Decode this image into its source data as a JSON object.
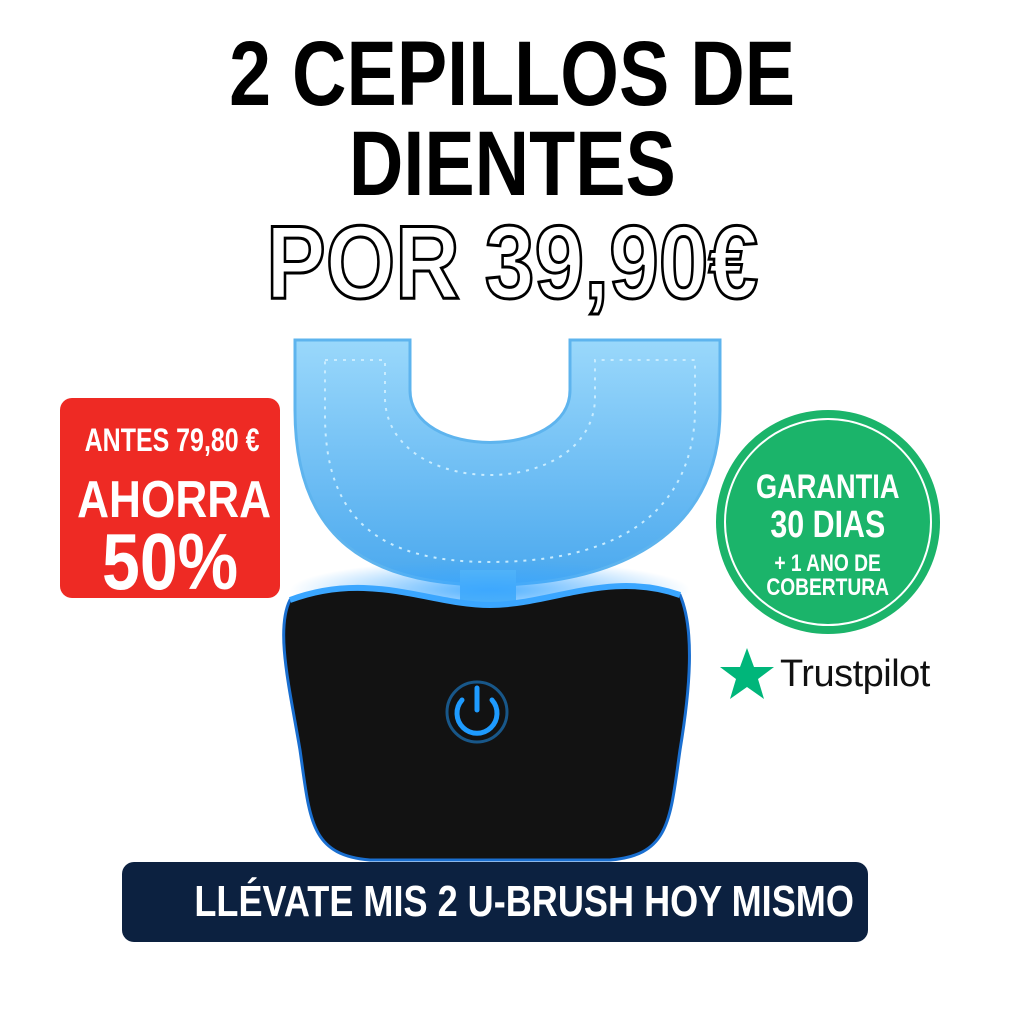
{
  "headline": {
    "line1": "2 CEPILLOS DE",
    "line2": "DIENTES",
    "price_line": "POR 39,90€"
  },
  "discount_badge": {
    "before_price": "ANTES 79,80 €",
    "save_label": "AHORRA",
    "percent": "50%",
    "color": "#ee2a24"
  },
  "guarantee_badge": {
    "line1": "GARANTIA",
    "line2": "30 DIAS",
    "line3": "+ 1 ANO DE",
    "line4": "COBERTURA",
    "color": "#1bb46a"
  },
  "trustpilot": {
    "icon": "star-icon",
    "label": "Trustpilot",
    "color": "#00b67a"
  },
  "product": {
    "mouthpiece_color": "#7cc8f5",
    "base_color": "#111111",
    "power_icon": "power-icon",
    "power_color": "#1e9bff"
  },
  "cta": {
    "label": "LLÉVATE MIS 2 U-BRUSH HOY MISMO",
    "color": "#0c2140"
  }
}
